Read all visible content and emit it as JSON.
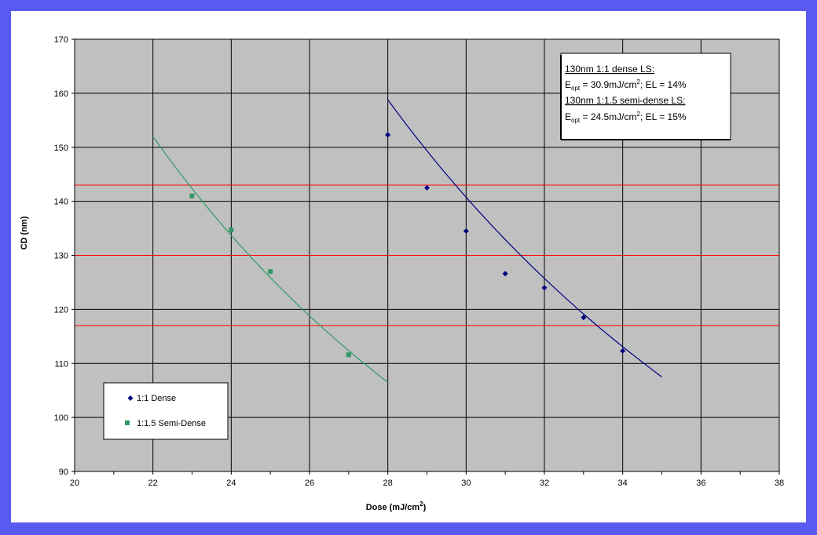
{
  "chart_data": {
    "type": "scatter",
    "title": "",
    "xlabel": "Dose (mJ/cm",
    "xlabel_sup": "2",
    "xlabel_close": ")",
    "ylabel": "CD (nm)",
    "xlim": [
      20,
      38
    ],
    "ylim": [
      90,
      170
    ],
    "x_ticks": [
      20,
      22,
      24,
      26,
      28,
      30,
      32,
      34,
      36,
      38
    ],
    "y_ticks": [
      90,
      100,
      110,
      120,
      130,
      140,
      150,
      160,
      170
    ],
    "grid": true,
    "colors": {
      "plot_background": "#c0c0c0",
      "grid": "#000000",
      "dense": "#000080",
      "semi_dense": "#339966",
      "reference_lines": "#ff0000",
      "border": "#5a5af0"
    },
    "series": [
      {
        "name": "1:1 Dense",
        "marker": "diamond",
        "x": [
          28,
          29,
          30,
          31,
          32,
          33,
          34
        ],
        "y": [
          152.3,
          142.5,
          134.5,
          126.6,
          124.0,
          118.5,
          112.3
        ],
        "trend": {
          "x": [
            28,
            35
          ],
          "y": [
            158.8,
            107.5
          ]
        }
      },
      {
        "name": "1:1.5 Semi-Dense",
        "marker": "square",
        "x": [
          23,
          24,
          25,
          27
        ],
        "y": [
          141.0,
          134.7,
          127.0,
          111.6
        ],
        "trend": {
          "x": [
            22,
            28
          ],
          "y": [
            152.0,
            106.5
          ]
        }
      }
    ],
    "reference_lines_y": [
      143,
      130,
      117
    ],
    "legend": {
      "placement": "bottom-left",
      "entries": [
        "1:1 Dense",
        "1:1.5 Semi-Dense"
      ]
    },
    "annotation": {
      "placement": "top-right",
      "line1": "130nm 1:1 dense LS:",
      "line2_prefix": "E",
      "line2_sub": "opt",
      "line2_middle": " = 30.9mJ/cm",
      "line2_sup": "2",
      "line2_suffix": "; EL = 14%",
      "line3": "130nm 1:1.5 semi-dense LS:",
      "line4_prefix": "E",
      "line4_sub": "opt",
      "line4_middle": " = 24.5mJ/cm",
      "line4_sup": "2",
      "line4_suffix": "; EL = 15%"
    }
  }
}
